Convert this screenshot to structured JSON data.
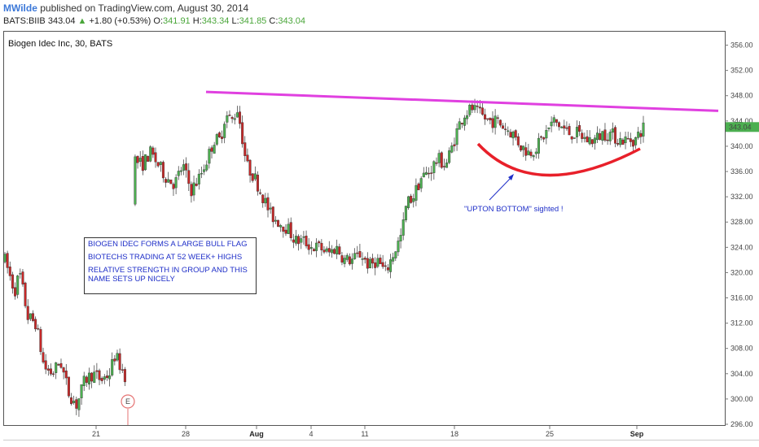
{
  "header": {
    "author": "MWilde",
    "published": "published on TradingView.com, August 30, 2014"
  },
  "ticker": {
    "symbol": "BATS:BIIB",
    "price": "343.04",
    "change": "+1.80 (+0.53%)",
    "o_label": "O:",
    "o": "341.91",
    "h_label": "H:",
    "h": "343.34",
    "l_label": "L:",
    "l": "341.85",
    "c_label": "C:",
    "c": "343.04"
  },
  "chart_title": "Biogen Idec Inc, 30, BATS",
  "notes": [
    "BIOGEN IDEC FORMS  A LARGE BULL FLAG",
    "BIOTECHS TRADING AT 52 WEEK+ HIGHS",
    "RELATIVE STRENGTH IN GROUP AND THIS NAME SETS UP NICELY"
  ],
  "annotation": "\"UPTON BOTTOM\" sighted !",
  "earnings_marker": "E",
  "price_label": "343.04",
  "colors": {
    "up": "#4caf50",
    "down": "#c62828",
    "trendline": "#e040e0",
    "arc": "#e8202a",
    "annotation": "#1f2fc8",
    "price_tag": "#4caf50"
  },
  "chart_data": {
    "type": "candlestick",
    "y_axis": {
      "min": 296,
      "max": 358,
      "ticks": [
        "356.00",
        "352.00",
        "348.00",
        "344.00",
        "340.00",
        "336.00",
        "332.00",
        "328.00",
        "324.00",
        "320.00",
        "316.00",
        "312.00",
        "308.00",
        "304.00",
        "300.00",
        "296.00"
      ]
    },
    "x_labels": [
      "21",
      "28",
      "Aug",
      "4",
      "11",
      "18",
      "25",
      "Sep"
    ],
    "last_price": 343.04,
    "path": [
      [
        0,
        322
      ],
      [
        12,
        317
      ],
      [
        18,
        320
      ],
      [
        28,
        313
      ],
      [
        38,
        312
      ],
      [
        48,
        305
      ],
      [
        58,
        304
      ],
      [
        68,
        306
      ],
      [
        78,
        301
      ],
      [
        88,
        299
      ],
      [
        98,
        303
      ],
      [
        108,
        304
      ],
      [
        118,
        303
      ],
      [
        128,
        304
      ],
      [
        135,
        307
      ],
      [
        142,
        305
      ],
      [
        150,
        303
      ],
      [
        158,
        338
      ],
      [
        168,
        337
      ],
      [
        178,
        339
      ],
      [
        188,
        337
      ],
      [
        198,
        335
      ],
      [
        208,
        334
      ],
      [
        218,
        337
      ],
      [
        228,
        333
      ],
      [
        238,
        335
      ],
      [
        248,
        338
      ],
      [
        256,
        341
      ],
      [
        264,
        341
      ],
      [
        270,
        345
      ],
      [
        278,
        344
      ],
      [
        285,
        346
      ],
      [
        290,
        342
      ],
      [
        296,
        337
      ],
      [
        306,
        335
      ],
      [
        316,
        332
      ],
      [
        326,
        329
      ],
      [
        336,
        328
      ],
      [
        346,
        327
      ],
      [
        356,
        325
      ],
      [
        366,
        325
      ],
      [
        376,
        324
      ],
      [
        386,
        324
      ],
      [
        396,
        323
      ],
      [
        406,
        324
      ],
      [
        416,
        322
      ],
      [
        426,
        322
      ],
      [
        436,
        323
      ],
      [
        446,
        321
      ],
      [
        456,
        322
      ],
      [
        466,
        320
      ],
      [
        476,
        323
      ],
      [
        486,
        326
      ],
      [
        492,
        331
      ],
      [
        500,
        332
      ],
      [
        510,
        335
      ],
      [
        520,
        336
      ],
      [
        530,
        338
      ],
      [
        540,
        337
      ],
      [
        548,
        340
      ],
      [
        555,
        343
      ],
      [
        562,
        345
      ],
      [
        572,
        346
      ],
      [
        582,
        345
      ],
      [
        592,
        344
      ],
      [
        602,
        344
      ],
      [
        612,
        343
      ],
      [
        622,
        342
      ],
      [
        632,
        340
      ],
      [
        642,
        339
      ],
      [
        652,
        340
      ],
      [
        662,
        342
      ],
      [
        672,
        344
      ],
      [
        682,
        343
      ],
      [
        692,
        342
      ],
      [
        702,
        342
      ],
      [
        712,
        341
      ],
      [
        722,
        341
      ],
      [
        732,
        342
      ],
      [
        742,
        342
      ],
      [
        752,
        341
      ],
      [
        762,
        341
      ],
      [
        772,
        341
      ],
      [
        782,
        343
      ]
    ],
    "earnings_x": 157
  }
}
